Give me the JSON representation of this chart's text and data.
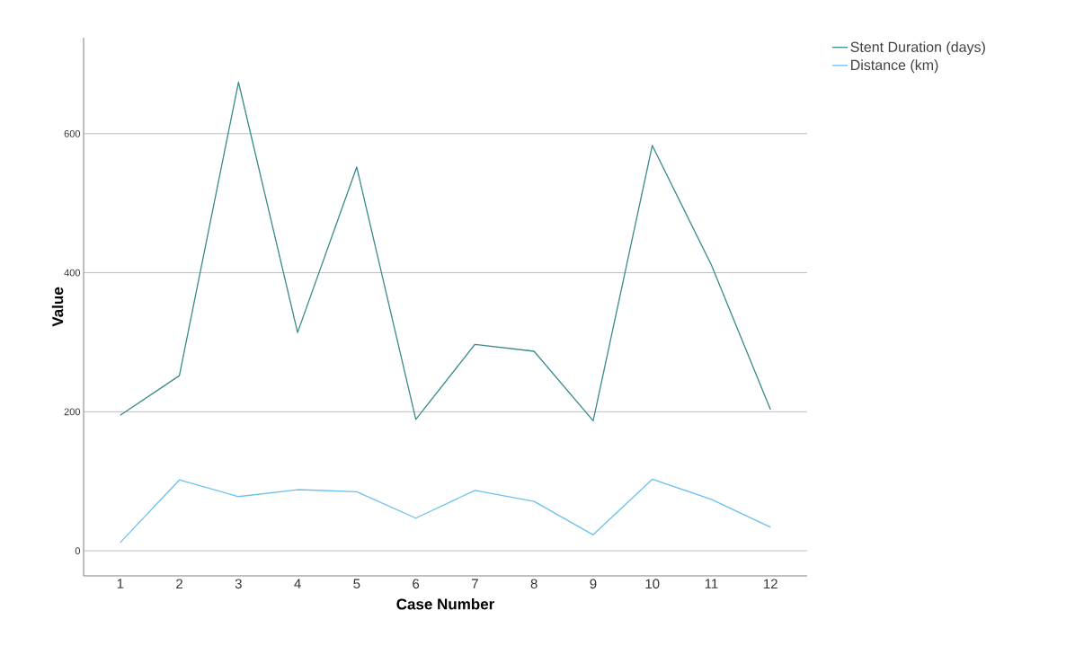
{
  "chart_data": {
    "type": "line",
    "xlabel": "Case Number",
    "ylabel": "Value",
    "categories": [
      "1",
      "2",
      "3",
      "4",
      "5",
      "6",
      "7",
      "8",
      "9",
      "10",
      "11",
      "12"
    ],
    "series": [
      {
        "name": "Stent Duration (days)",
        "color": "#3a8a8c",
        "values": [
          195,
          252,
          674,
          314,
          552,
          189,
          297,
          287,
          187,
          583,
          411,
          203
        ]
      },
      {
        "name": "Distance (km)",
        "color": "#6cc0f0",
        "values": [
          12,
          102,
          78,
          88,
          85,
          47,
          87,
          71,
          23,
          103,
          74,
          34
        ]
      }
    ],
    "ylim": [
      -36,
      738
    ],
    "yticks": [
      0,
      200,
      400,
      600
    ],
    "grid": "y",
    "legend": "top right",
    "marker": "none",
    "line_style": "solid"
  }
}
